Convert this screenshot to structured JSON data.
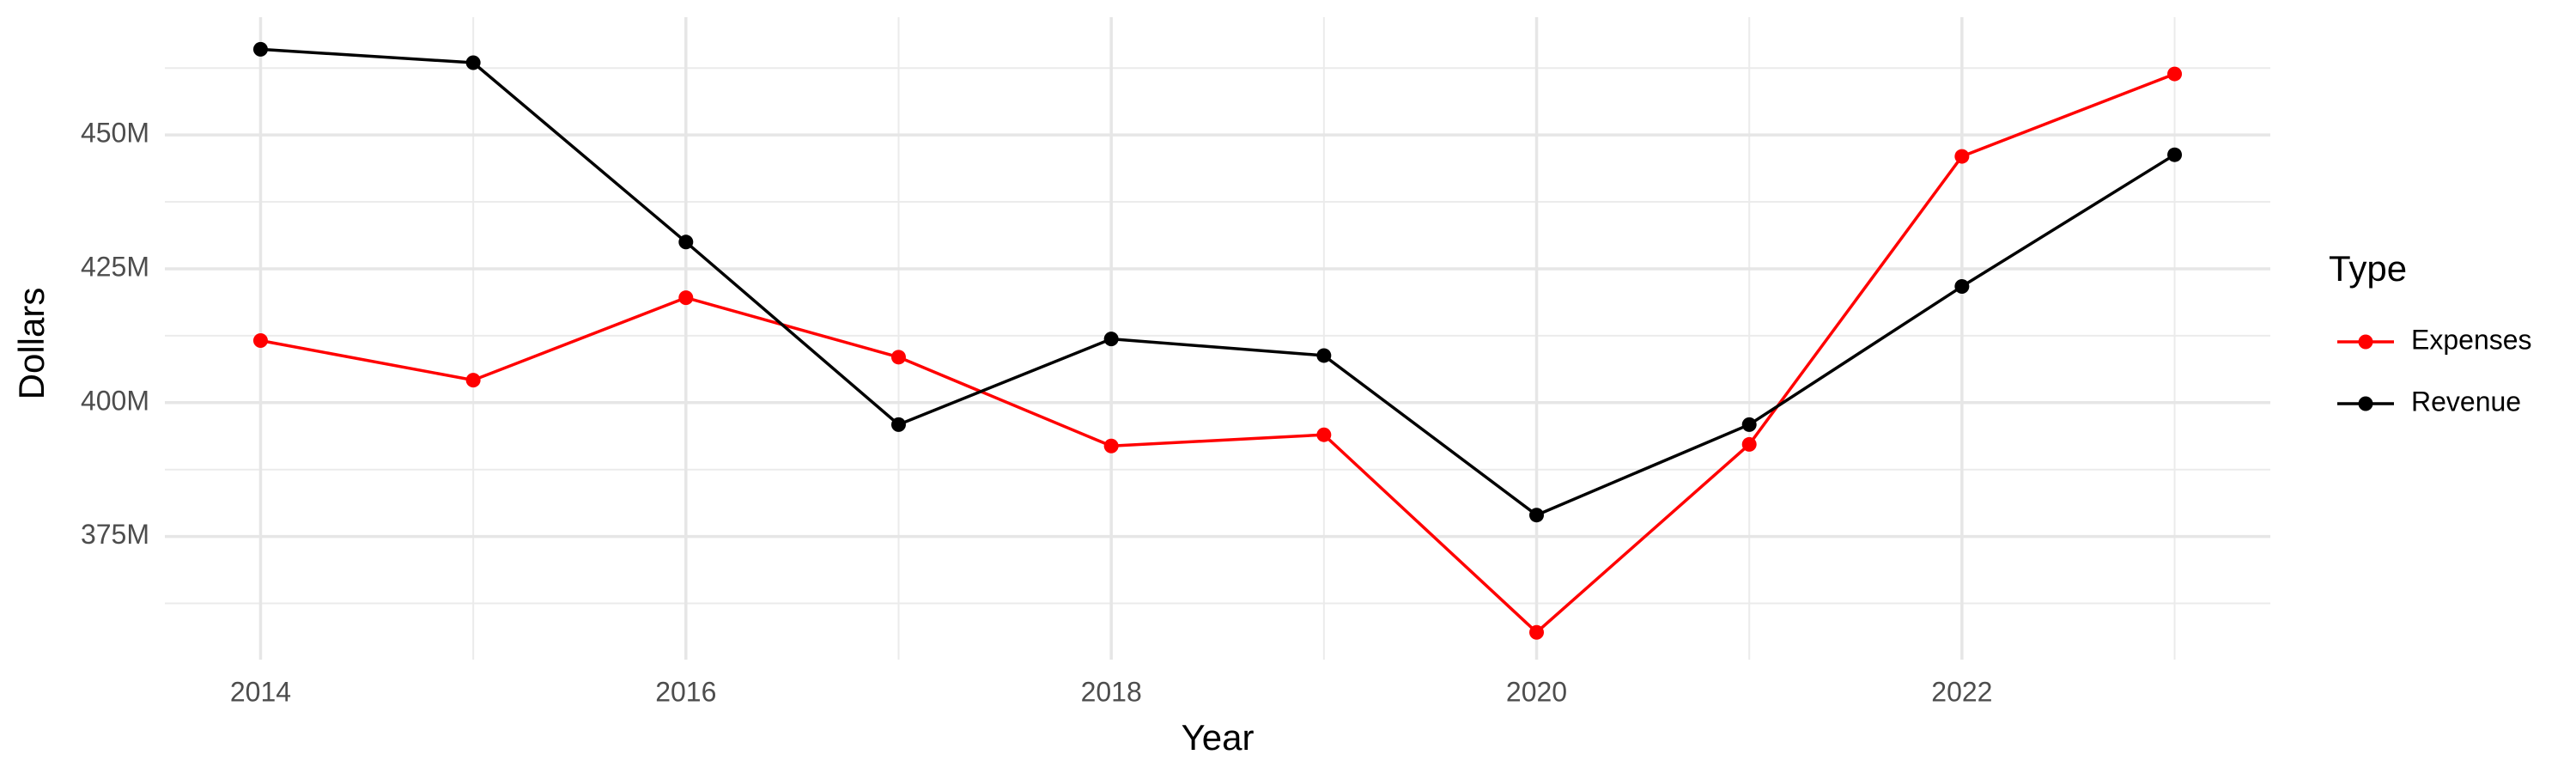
{
  "chart_data": {
    "type": "line",
    "x_label": "Year",
    "y_label": "Dollars",
    "legend_title": "Type",
    "x": [
      2014,
      2015,
      2016,
      2017,
      2018,
      2019,
      2020,
      2021,
      2022,
      2023
    ],
    "series": [
      {
        "name": "Expenses",
        "color": "#ff0000",
        "values": [
          411600000,
          404200000,
          419600000,
          408500000,
          391900000,
          394000000,
          357100000,
          392200000,
          446000000,
          461400000
        ]
      },
      {
        "name": "Revenue",
        "color": "#000000",
        "values": [
          466000000,
          463500000,
          430000000,
          395900000,
          411900000,
          408800000,
          379000000,
          395900000,
          421700000,
          446300000
        ]
      }
    ],
    "xlim": [
      2013.55,
      2023.45
    ],
    "xticks": [
      2014,
      2016,
      2018,
      2020,
      2022
    ],
    "ylim": [
      352000000,
      472000000
    ],
    "yticks": [
      {
        "value": 375000000,
        "label": "375M"
      },
      {
        "value": 400000000,
        "label": "400M"
      },
      {
        "value": 425000000,
        "label": "425M"
      },
      {
        "value": 450000000,
        "label": "450M"
      }
    ],
    "grid": true,
    "legend": "right"
  }
}
